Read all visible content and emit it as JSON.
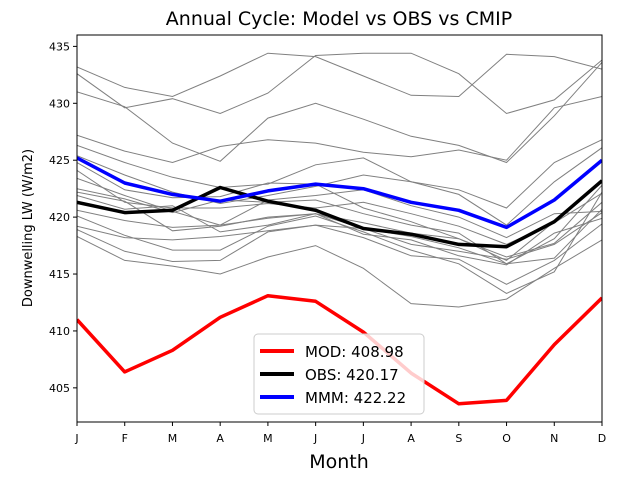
{
  "chart_data": {
    "type": "line",
    "title": "Annual Cycle: Model vs OBS vs CMIP",
    "xlabel": "Month",
    "ylabel": "Downwelling LW (W/m2)",
    "categories": [
      "J",
      "F",
      "M",
      "A",
      "M",
      "J",
      "J",
      "A",
      "S",
      "O",
      "N",
      "D"
    ],
    "ylim": [
      402,
      436
    ],
    "yticks": [
      405,
      410,
      415,
      420,
      425,
      430,
      435
    ],
    "legend_position": "lower-center",
    "ensemble_color": "#808080",
    "ensemble": [
      [
        433.2,
        431.4,
        430.6,
        432.4,
        434.4,
        434.1,
        432.4,
        430.7,
        430.6,
        434.3,
        434.1,
        433.0
      ],
      [
        432.6,
        429.6,
        430.4,
        429.1,
        430.9,
        434.2,
        434.4,
        434.4,
        432.6,
        429.1,
        430.3,
        433.8
      ],
      [
        431.0,
        429.7,
        426.5,
        424.9,
        428.7,
        430.0,
        428.6,
        427.1,
        426.3,
        424.8,
        428.9,
        433.6
      ],
      [
        427.2,
        425.8,
        424.8,
        426.2,
        426.8,
        426.5,
        425.7,
        425.3,
        425.9,
        425.0,
        429.6,
        430.6
      ],
      [
        426.3,
        424.8,
        423.5,
        422.6,
        422.9,
        424.6,
        425.2,
        423.1,
        422.4,
        420.8,
        424.8,
        426.8
      ],
      [
        425.4,
        423.7,
        422.2,
        421.2,
        421.9,
        422.7,
        423.7,
        423.1,
        422.0,
        419.3,
        423.1,
        426.1
      ],
      [
        424.8,
        422.4,
        421.7,
        421.8,
        423.0,
        422.9,
        420.8,
        419.6,
        418.1,
        416.2,
        419.6,
        423.2
      ],
      [
        424.1,
        421.3,
        420.8,
        420.8,
        421.2,
        420.8,
        421.3,
        420.3,
        419.2,
        417.6,
        419.5,
        422.1
      ],
      [
        423.4,
        421.9,
        420.5,
        419.3,
        421.5,
        421.9,
        422.4,
        421.0,
        420.0,
        418.2,
        420.3,
        420.5
      ],
      [
        422.5,
        421.6,
        420.4,
        421.5,
        421.3,
        421.5,
        420.3,
        419.3,
        418.6,
        415.9,
        418.1,
        422.8
      ],
      [
        422.2,
        421.4,
        418.8,
        419.2,
        420.0,
        420.3,
        419.5,
        418.6,
        418.1,
        416.5,
        417.7,
        421.3
      ],
      [
        421.9,
        420.7,
        421.0,
        418.7,
        419.3,
        420.3,
        419.0,
        418.3,
        417.3,
        415.9,
        416.4,
        420.7
      ],
      [
        420.6,
        419.7,
        419.1,
        419.3,
        419.9,
        420.3,
        418.5,
        418.0,
        416.6,
        415.8,
        418.6,
        419.9
      ],
      [
        419.2,
        418.2,
        418.0,
        418.3,
        418.8,
        419.3,
        419.0,
        417.6,
        417.0,
        416.3,
        417.6,
        420.4
      ],
      [
        418.9,
        417.0,
        416.1,
        416.2,
        418.7,
        419.3,
        418.2,
        416.6,
        416.3,
        414.1,
        416.2,
        419.4
      ],
      [
        418.3,
        416.2,
        415.7,
        415.0,
        416.5,
        417.5,
        415.5,
        412.4,
        412.1,
        412.8,
        415.5,
        418.0
      ],
      [
        420.1,
        418.4,
        417.1,
        417.1,
        419.2,
        420.1,
        418.7,
        417.1,
        415.9,
        413.3,
        415.2,
        422.2
      ]
    ],
    "series": [
      {
        "name": "MOD",
        "legend": "MOD: 408.98",
        "color": "#ff0000",
        "values": [
          411.0,
          406.4,
          408.3,
          411.2,
          413.1,
          412.6,
          409.9,
          406.3,
          403.6,
          403.9,
          408.8,
          412.9
        ]
      },
      {
        "name": "OBS",
        "legend": "OBS: 420.17",
        "color": "#000000",
        "values": [
          421.3,
          420.4,
          420.6,
          422.6,
          421.4,
          420.6,
          419.0,
          418.5,
          417.6,
          417.4,
          419.6,
          423.2
        ]
      },
      {
        "name": "MMM",
        "legend": "MMM: 422.22",
        "color": "#0000ff",
        "values": [
          425.2,
          423.0,
          422.0,
          421.4,
          422.3,
          422.9,
          422.5,
          421.3,
          420.6,
          419.1,
          421.5,
          425.0
        ]
      }
    ]
  }
}
